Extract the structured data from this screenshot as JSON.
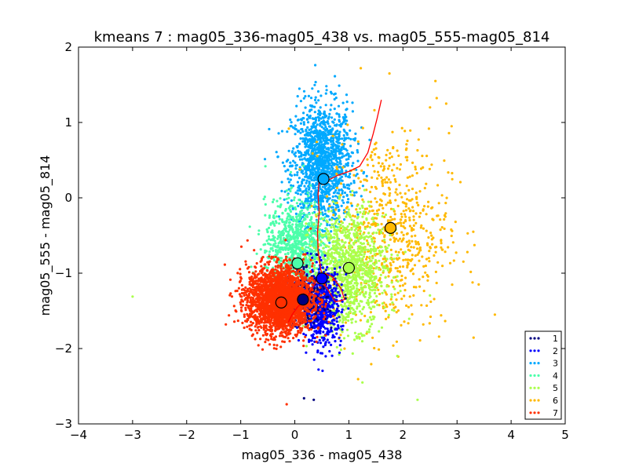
{
  "chart_data": {
    "type": "scatter",
    "title": "kmeans 7 : mag05_336-mag05_438 vs. mag05_555-mag05_814",
    "xlabel": "mag05_336 - mag05_438",
    "ylabel": "mag05_555 - mag05_814",
    "xlim": [
      -4,
      5
    ],
    "ylim": [
      -3,
      2
    ],
    "xticks": [
      -4,
      -3,
      -2,
      -1,
      0,
      1,
      2,
      3,
      4,
      5
    ],
    "yticks": [
      -3,
      -2,
      -1,
      0,
      1,
      2
    ],
    "xtick_labels": [
      "−4",
      "−3",
      "−2",
      "−1",
      "0",
      "1",
      "2",
      "3",
      "4",
      "5"
    ],
    "ytick_labels": [
      "−3",
      "−2",
      "−1",
      "0",
      "1",
      "2"
    ],
    "grid": false,
    "legend_position": "bottom-right",
    "series": [
      {
        "name": "1",
        "color": "#00007f",
        "center": [
          0.15,
          -1.35
        ],
        "spread": [
          0.22,
          0.18
        ],
        "samples": 300,
        "points": [
          [
            0.17,
            -2.66
          ],
          [
            0.35,
            -2.68
          ]
        ]
      },
      {
        "name": "2",
        "color": "#0000ff",
        "center": [
          0.5,
          -1.45
        ],
        "spread": [
          0.18,
          0.25
        ],
        "samples": 600,
        "points": []
      },
      {
        "name": "3",
        "color": "#00a9ff",
        "center": [
          0.5,
          0.45
        ],
        "spread": [
          0.28,
          0.4
        ],
        "samples": 1400,
        "points": []
      },
      {
        "name": "4",
        "color": "#4cffaa",
        "center": [
          0.05,
          -0.65
        ],
        "spread": [
          0.3,
          0.3
        ],
        "samples": 900,
        "points": []
      },
      {
        "name": "5",
        "color": "#aaff4c",
        "center": [
          1.0,
          -0.95
        ],
        "spread": [
          0.35,
          0.38
        ],
        "samples": 1100,
        "points": [
          [
            -3.0,
            -1.31
          ],
          [
            1.25,
            -2.45
          ],
          [
            2.27,
            -2.68
          ],
          [
            0.82,
            -2.08
          ]
        ]
      },
      {
        "name": "6",
        "color": "#ffb900",
        "center": [
          1.75,
          -0.45
        ],
        "spread": [
          0.55,
          0.65
        ],
        "samples": 700,
        "points": [
          [
            1.22,
            1.72
          ],
          [
            1.75,
            1.65
          ],
          [
            2.6,
            1.55
          ],
          [
            2.8,
            1.25
          ],
          [
            2.9,
            0.95
          ],
          [
            3.3,
            -0.45
          ],
          [
            3.7,
            -1.55
          ],
          [
            3.4,
            -1.15
          ],
          [
            2.5,
            1.2
          ]
        ]
      },
      {
        "name": "7",
        "color": "#ff3000",
        "center": [
          -0.28,
          -1.35
        ],
        "spread": [
          0.3,
          0.22
        ],
        "samples": 2600,
        "points": [
          [
            -0.15,
            -2.74
          ]
        ]
      }
    ],
    "centroids": [
      {
        "series": "1",
        "x": 0.15,
        "y": -1.35
      },
      {
        "series": "2",
        "x": 0.5,
        "y": -1.07
      },
      {
        "series": "3",
        "x": 0.53,
        "y": 0.25
      },
      {
        "series": "4",
        "x": 0.05,
        "y": -0.87
      },
      {
        "series": "5",
        "x": 1.0,
        "y": -0.93
      },
      {
        "series": "6",
        "x": 1.77,
        "y": -0.4
      },
      {
        "series": "7",
        "x": -0.25,
        "y": -1.39
      }
    ],
    "track_line": {
      "color": "#ff0000",
      "points": [
        [
          -0.12,
          -1.65
        ],
        [
          -0.05,
          -1.55
        ],
        [
          0.05,
          -1.45
        ],
        [
          0.25,
          -1.3
        ],
        [
          0.4,
          -1.1
        ],
        [
          0.55,
          -1.0
        ],
        [
          0.7,
          -1.05
        ],
        [
          0.85,
          -1.2
        ],
        [
          0.92,
          -1.35
        ],
        [
          0.75,
          -1.38
        ],
        [
          0.55,
          -1.15
        ],
        [
          0.48,
          -0.95
        ],
        [
          0.43,
          -0.7
        ],
        [
          0.42,
          -0.45
        ],
        [
          0.45,
          -0.2
        ],
        [
          0.43,
          0.05
        ],
        [
          0.45,
          0.22
        ],
        [
          0.6,
          0.23
        ],
        [
          0.8,
          0.3
        ],
        [
          1.0,
          0.35
        ],
        [
          1.2,
          0.42
        ],
        [
          1.35,
          0.6
        ],
        [
          1.45,
          0.85
        ],
        [
          1.52,
          1.05
        ],
        [
          1.6,
          1.3
        ]
      ]
    }
  }
}
